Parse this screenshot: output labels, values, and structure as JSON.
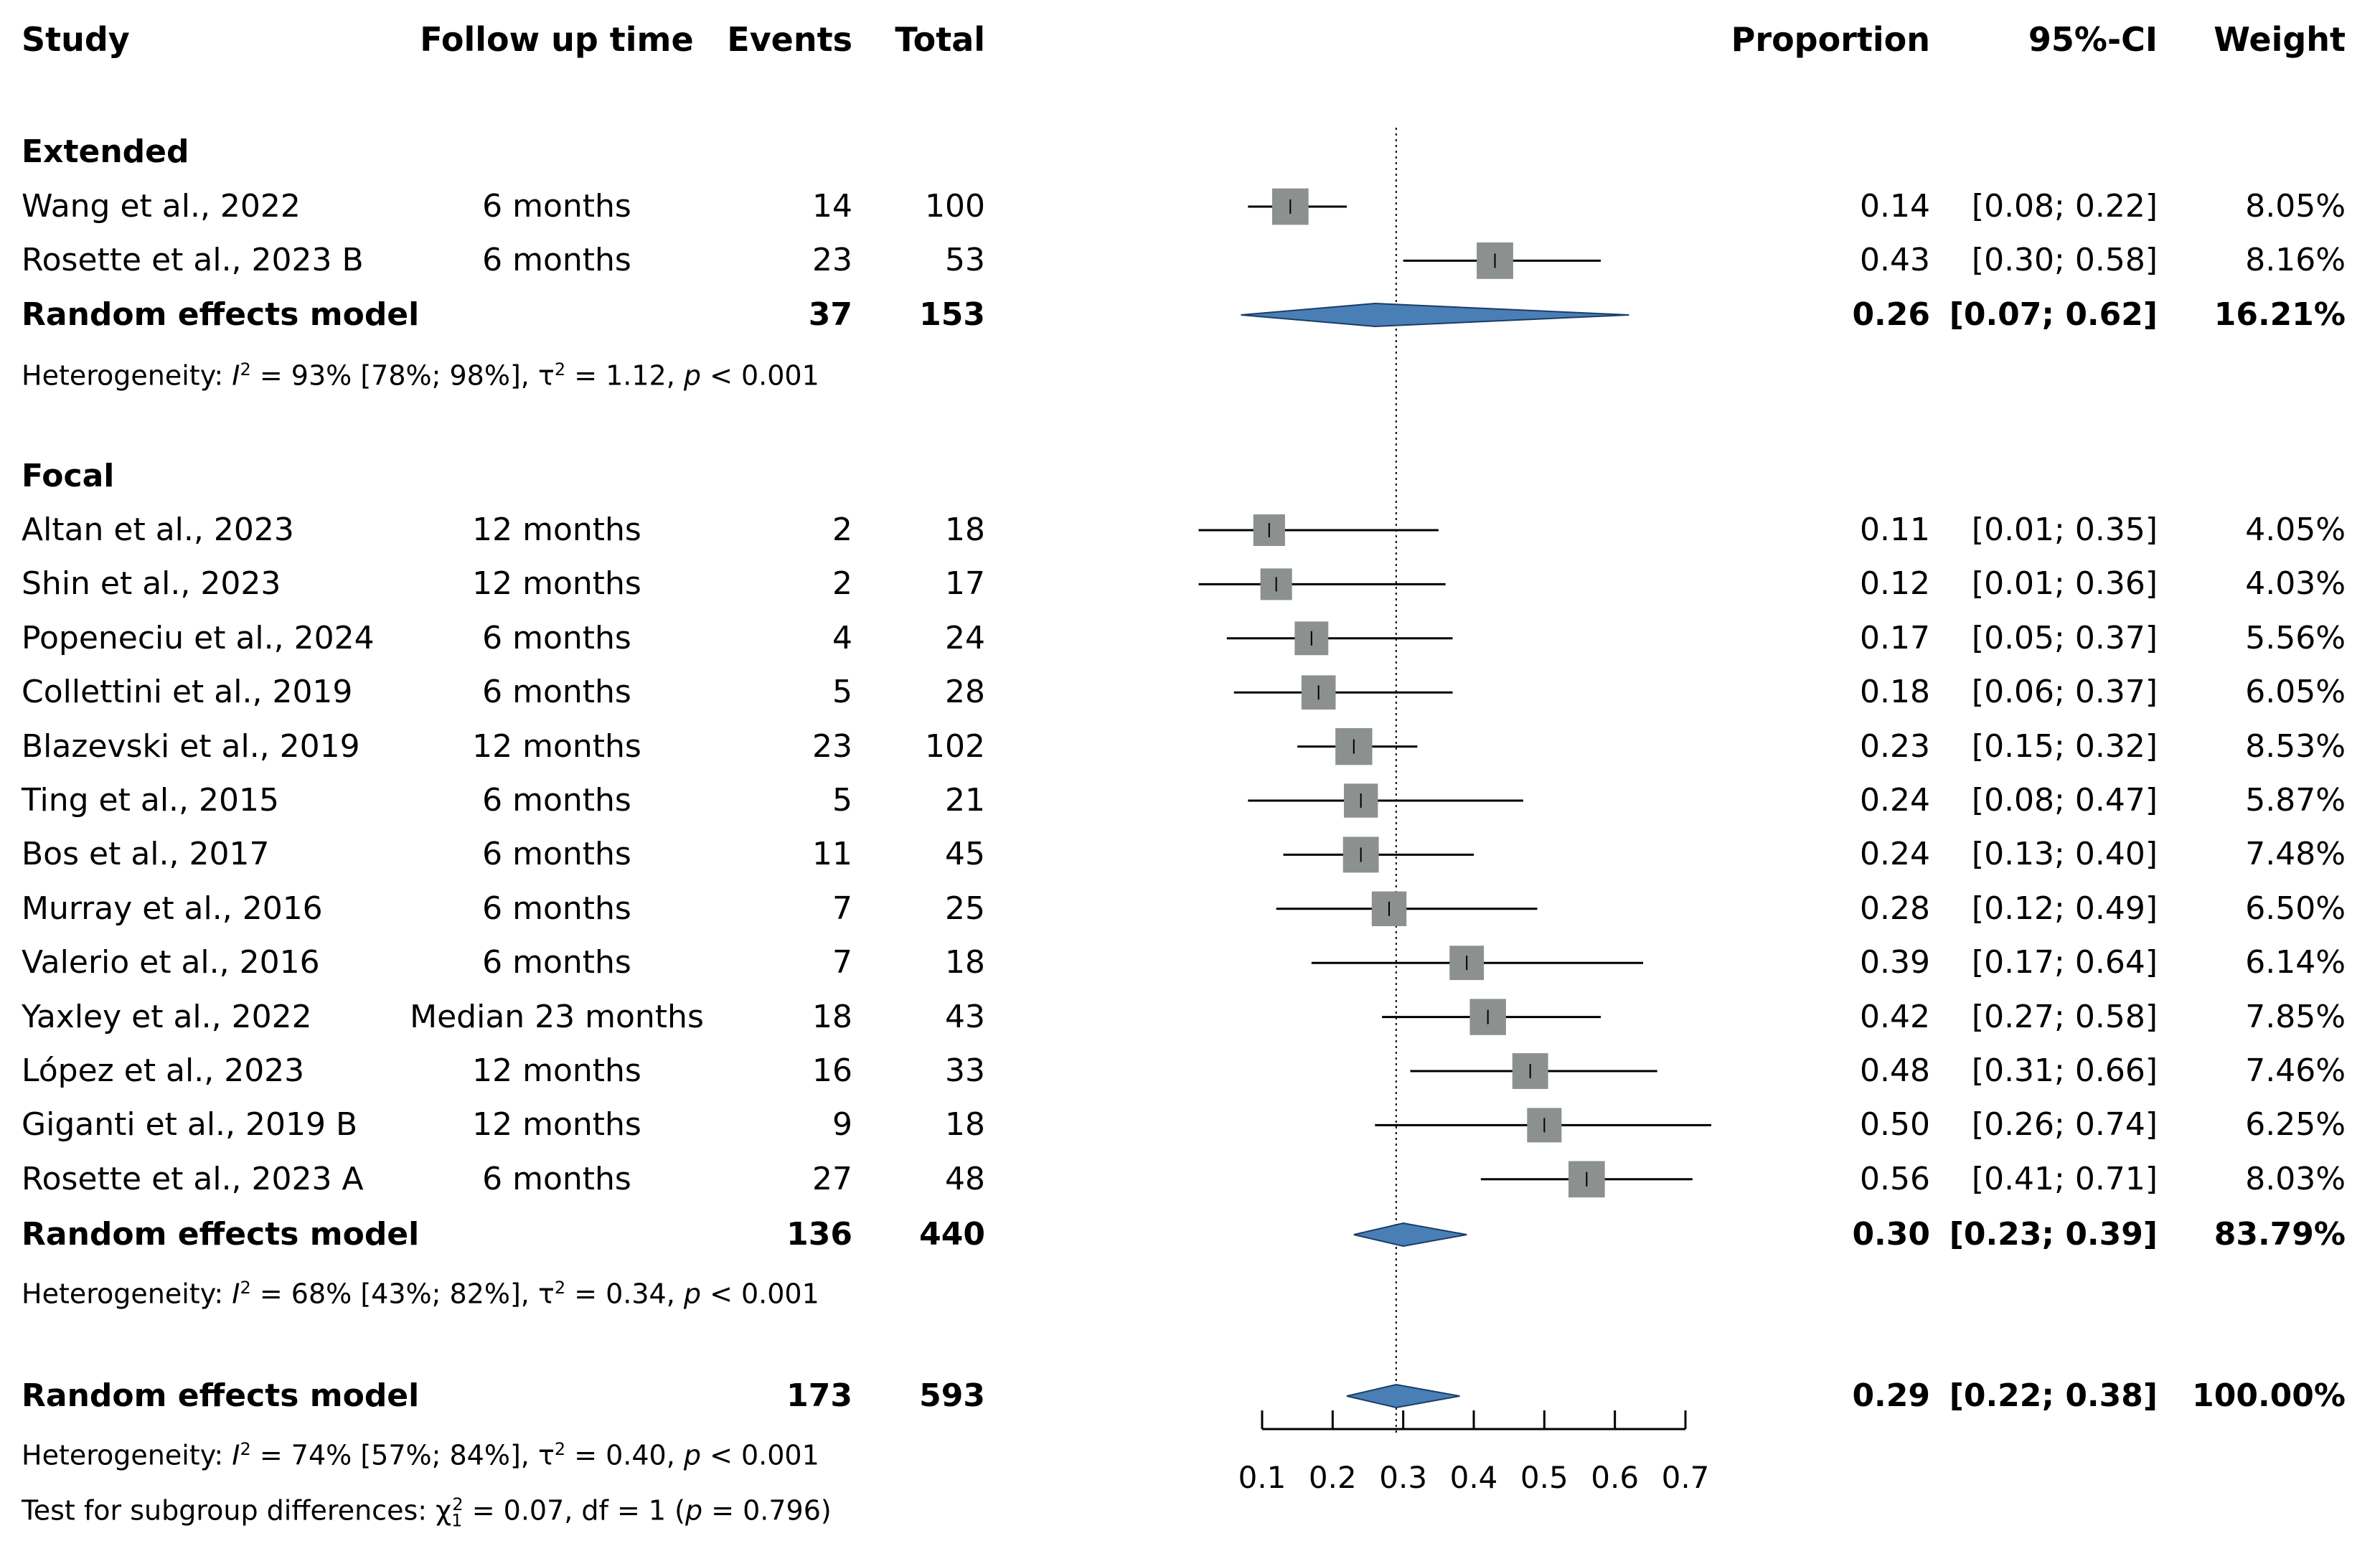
{
  "headers": {
    "study": "Study",
    "follow_up": "Follow up time",
    "events": "Events",
    "total": "Total",
    "proportion": "Proportion",
    "ci": "95%-CI",
    "weight": "Weight"
  },
  "groups": [
    {
      "name": "Extended",
      "studies": [
        {
          "study": "Wang et al., 2022",
          "follow_up": "6 months",
          "events": "14",
          "total": "100",
          "proportion": "0.14",
          "ci": "[0.08; 0.22]",
          "weight": "8.05%"
        },
        {
          "study": "Rosette et al., 2023 B",
          "follow_up": "6 months",
          "events": "23",
          "total": "53",
          "proportion": "0.43",
          "ci": "[0.30; 0.58]",
          "weight": "8.16%"
        }
      ],
      "model": {
        "label": "Random effects model",
        "events": "37",
        "total": "153",
        "proportion": "0.26",
        "ci": "[0.07; 0.62]",
        "weight": "16.21%"
      },
      "heterogeneity": {
        "prefix": "Heterogeneity: ",
        "i2": "I",
        "i2_sup": "2",
        "i2_text": " = 93% [78%; 98%], τ",
        "tau_sup": "2",
        "tau_text": " = 1.12, ",
        "p": "p",
        "p_text": " < 0.001"
      }
    },
    {
      "name": "Focal",
      "studies": [
        {
          "study": "Altan et al., 2023",
          "follow_up": "12 months",
          "events": "2",
          "total": "18",
          "proportion": "0.11",
          "ci": "[0.01; 0.35]",
          "weight": "4.05%"
        },
        {
          "study": "Shin et al., 2023",
          "follow_up": "12 months",
          "events": "2",
          "total": "17",
          "proportion": "0.12",
          "ci": "[0.01; 0.36]",
          "weight": "4.03%"
        },
        {
          "study": "Popeneciu et al., 2024",
          "follow_up": "6 months",
          "events": "4",
          "total": "24",
          "proportion": "0.17",
          "ci": "[0.05; 0.37]",
          "weight": "5.56%"
        },
        {
          "study": "Collettini et al., 2019",
          "follow_up": "6 months",
          "events": "5",
          "total": "28",
          "proportion": "0.18",
          "ci": "[0.06; 0.37]",
          "weight": "6.05%"
        },
        {
          "study": "Blazevski et al., 2019",
          "follow_up": "12 months",
          "events": "23",
          "total": "102",
          "proportion": "0.23",
          "ci": "[0.15; 0.32]",
          "weight": "8.53%"
        },
        {
          "study": "Ting et al., 2015",
          "follow_up": "6 months",
          "events": "5",
          "total": "21",
          "proportion": "0.24",
          "ci": "[0.08; 0.47]",
          "weight": "5.87%"
        },
        {
          "study": "Bos et al., 2017",
          "follow_up": "6 months",
          "events": "11",
          "total": "45",
          "proportion": "0.24",
          "ci": "[0.13; 0.40]",
          "weight": "7.48%"
        },
        {
          "study": "Murray et al., 2016",
          "follow_up": "6 months",
          "events": "7",
          "total": "25",
          "proportion": "0.28",
          "ci": "[0.12; 0.49]",
          "weight": "6.50%"
        },
        {
          "study": "Valerio et al., 2016",
          "follow_up": "6 months",
          "events": "7",
          "total": "18",
          "proportion": "0.39",
          "ci": "[0.17; 0.64]",
          "weight": "6.14%"
        },
        {
          "study": "Yaxley et al., 2022",
          "follow_up": "Median 23 months",
          "events": "18",
          "total": "43",
          "proportion": "0.42",
          "ci": "[0.27; 0.58]",
          "weight": "7.85%"
        },
        {
          "study": "López et al., 2023",
          "follow_up": "12 months",
          "events": "16",
          "total": "33",
          "proportion": "0.48",
          "ci": "[0.31; 0.66]",
          "weight": "7.46%"
        },
        {
          "study": "Giganti et al., 2019 B",
          "follow_up": "12 months",
          "events": "9",
          "total": "18",
          "proportion": "0.50",
          "ci": "[0.26; 0.74]",
          "weight": "6.25%"
        },
        {
          "study": "Rosette et al., 2023 A",
          "follow_up": "6 months",
          "events": "27",
          "total": "48",
          "proportion": "0.56",
          "ci": "[0.41; 0.71]",
          "weight": "8.03%"
        }
      ],
      "model": {
        "label": "Random effects model",
        "events": "136",
        "total": "440",
        "proportion": "0.30",
        "ci": "[0.23; 0.39]",
        "weight": "83.79%"
      },
      "heterogeneity": {
        "prefix": "Heterogeneity: ",
        "i2": "I",
        "i2_sup": "2",
        "i2_text": " = 68% [43%; 82%], τ",
        "tau_sup": "2",
        "tau_text": " = 0.34, ",
        "p": "p",
        "p_text": " < 0.001"
      }
    }
  ],
  "overall": {
    "model": {
      "label": "Random effects model",
      "events": "173",
      "total": "593",
      "proportion": "0.29",
      "ci": "[0.22; 0.38]",
      "weight": "100.00%"
    },
    "heterogeneity": {
      "prefix": "Heterogeneity: ",
      "i2": "I",
      "i2_sup": "2",
      "i2_text": " = 74% [57%; 84%], τ",
      "tau_sup": "2",
      "tau_text": " = 0.40, ",
      "p": "p",
      "p_text": " < 0.001"
    },
    "subgroup_test": {
      "prefix": "Test for subgroup differences: χ",
      "chi_sub": "1",
      "chi_sup": "2",
      "text": " = 0.07, df = 1 (",
      "p": "p",
      "p_text": " = 0.796)"
    }
  },
  "chart_data": {
    "type": "forest",
    "axis": {
      "min": 0.1,
      "max": 0.7,
      "ticks": [
        0.1,
        0.2,
        0.3,
        0.4,
        0.5,
        0.6,
        0.7
      ],
      "tick_labels": [
        "0.1",
        "0.2",
        "0.3",
        "0.4",
        "0.5",
        "0.6",
        "0.7"
      ]
    },
    "reference_line": 0.29,
    "colors": {
      "square": "#8c918f",
      "diamond": "#4a7fb5",
      "diamond_edge": "#1a3d66",
      "line": "#000000"
    },
    "study_points": [
      {
        "row": "extended-0",
        "est": 0.14,
        "lo": 0.08,
        "hi": 0.22,
        "weight": 8.05
      },
      {
        "row": "extended-1",
        "est": 0.43,
        "lo": 0.3,
        "hi": 0.58,
        "weight": 8.16
      },
      {
        "row": "focal-0",
        "est": 0.11,
        "lo": 0.01,
        "hi": 0.35,
        "weight": 4.05
      },
      {
        "row": "focal-1",
        "est": 0.12,
        "lo": 0.01,
        "hi": 0.36,
        "weight": 4.03
      },
      {
        "row": "focal-2",
        "est": 0.17,
        "lo": 0.05,
        "hi": 0.37,
        "weight": 5.56
      },
      {
        "row": "focal-3",
        "est": 0.18,
        "lo": 0.06,
        "hi": 0.37,
        "weight": 6.05
      },
      {
        "row": "focal-4",
        "est": 0.23,
        "lo": 0.15,
        "hi": 0.32,
        "weight": 8.53
      },
      {
        "row": "focal-5",
        "est": 0.24,
        "lo": 0.08,
        "hi": 0.47,
        "weight": 5.87
      },
      {
        "row": "focal-6",
        "est": 0.24,
        "lo": 0.13,
        "hi": 0.4,
        "weight": 7.48
      },
      {
        "row": "focal-7",
        "est": 0.28,
        "lo": 0.12,
        "hi": 0.49,
        "weight": 6.5
      },
      {
        "row": "focal-8",
        "est": 0.39,
        "lo": 0.17,
        "hi": 0.64,
        "weight": 6.14
      },
      {
        "row": "focal-9",
        "est": 0.42,
        "lo": 0.27,
        "hi": 0.58,
        "weight": 7.85
      },
      {
        "row": "focal-10",
        "est": 0.48,
        "lo": 0.31,
        "hi": 0.66,
        "weight": 7.46
      },
      {
        "row": "focal-11",
        "est": 0.5,
        "lo": 0.26,
        "hi": 0.74,
        "weight": 6.25
      },
      {
        "row": "focal-12",
        "est": 0.56,
        "lo": 0.41,
        "hi": 0.71,
        "weight": 8.03
      }
    ],
    "pooled": [
      {
        "row": "extended-model",
        "est": 0.26,
        "lo": 0.07,
        "hi": 0.62
      },
      {
        "row": "focal-model",
        "est": 0.3,
        "lo": 0.23,
        "hi": 0.39
      },
      {
        "row": "overall-model",
        "est": 0.29,
        "lo": 0.22,
        "hi": 0.38
      }
    ]
  }
}
